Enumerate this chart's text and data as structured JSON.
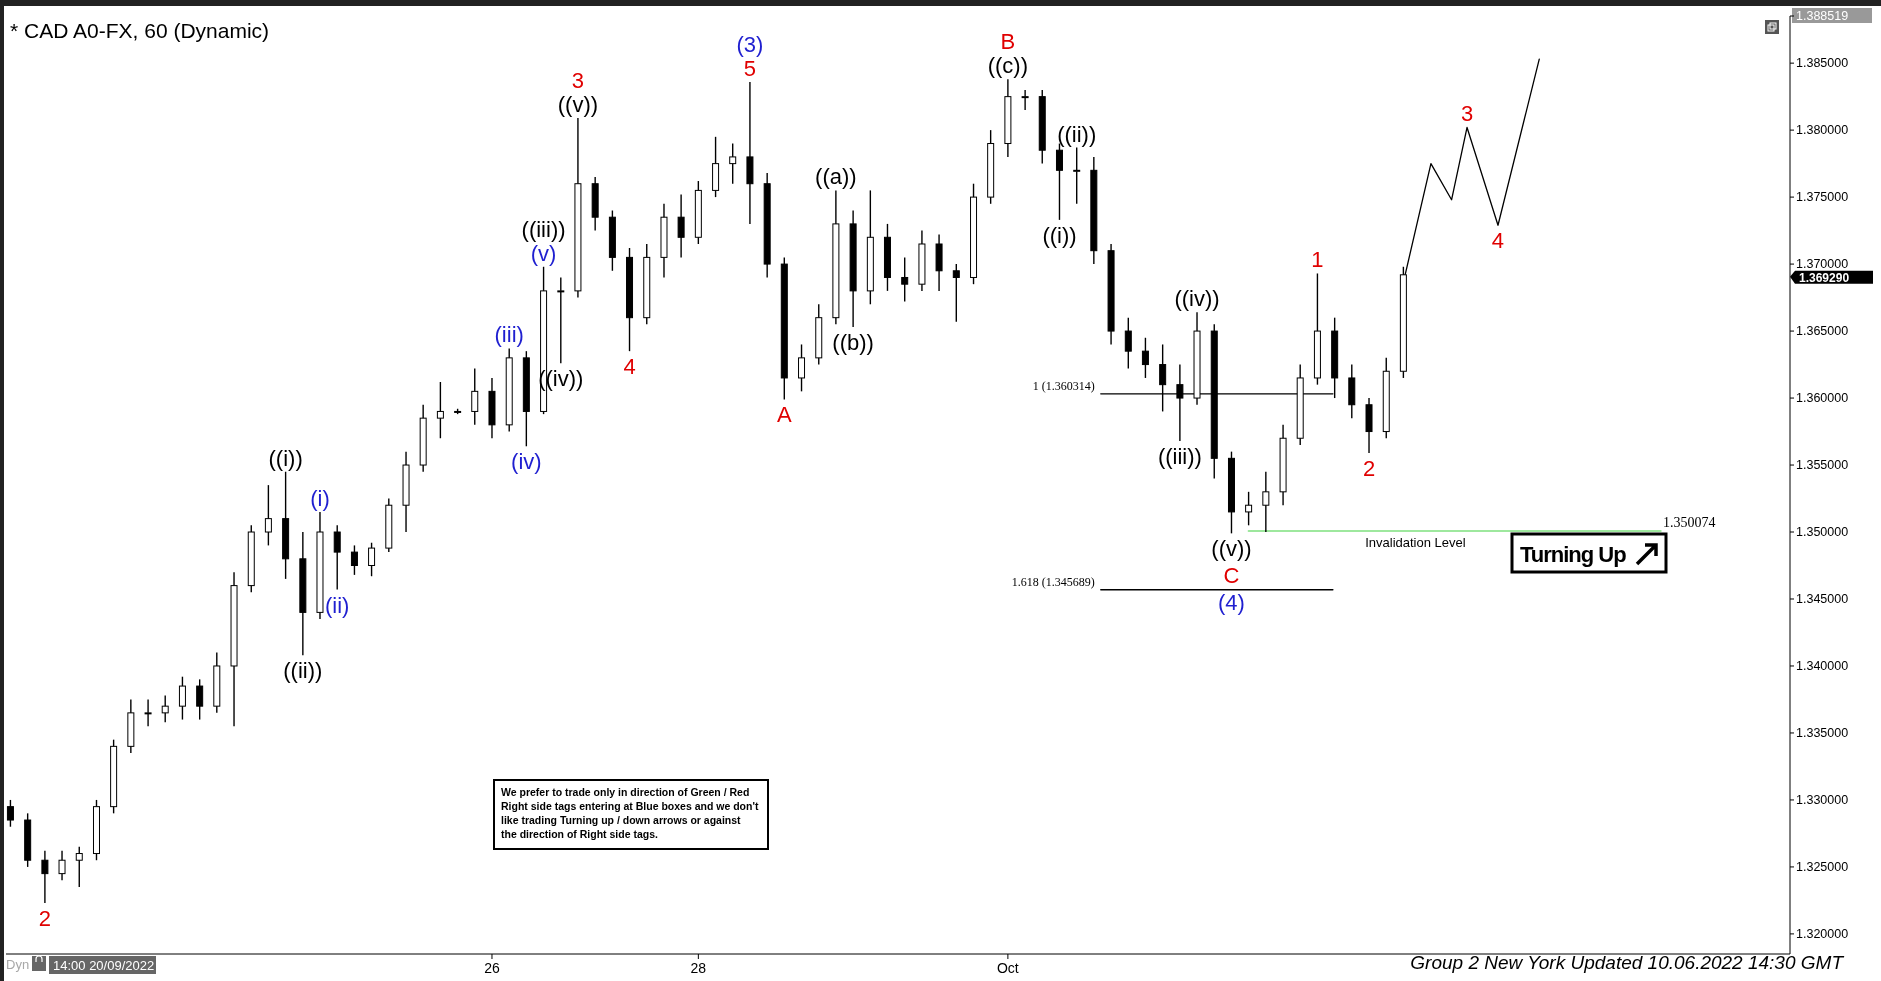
{
  "chart_data": {
    "type": "candlestick",
    "title": "* CAD A0-FX, 60 (Dynamic)",
    "color": "#000000",
    "xlim": [
      21.29,
      38.58
    ],
    "xticks": [
      26,
      28,
      {
        "value": 31,
        "label": "Oct"
      }
    ],
    "ylim": [
      1.3185,
      1.388519
    ],
    "yticks": [
      {
        "value": 1.32,
        "label": "1.320000"
      },
      {
        "value": 1.325,
        "label": "1.325000"
      },
      {
        "value": 1.33,
        "label": "1.330000"
      },
      {
        "value": 1.335,
        "label": "1.335000"
      },
      {
        "value": 1.34,
        "label": "1.340000"
      },
      {
        "value": 1.345,
        "label": "1.345000"
      },
      {
        "value": 1.35,
        "label": "1.350000"
      },
      {
        "value": 1.355,
        "label": "1.355000"
      },
      {
        "value": 1.36,
        "label": "1.360000"
      },
      {
        "value": 1.365,
        "label": "1.365000"
      },
      {
        "value": 1.37,
        "label": "1.370000"
      },
      {
        "value": 1.375,
        "label": "1.375000"
      },
      {
        "value": 1.38,
        "label": "1.380000"
      },
      {
        "value": 1.385,
        "label": "1.385000"
      },
      {
        "value": 1.388519,
        "label": "1.388519"
      }
    ],
    "x": [
      21.333,
      21.5,
      21.667,
      21.833,
      22,
      22.167,
      22.333,
      22.5,
      22.667,
      22.833,
      23,
      23.167,
      23.333,
      23.5,
      23.667,
      23.833,
      24,
      24.167,
      24.333,
      24.5,
      24.667,
      24.833,
      25,
      25.167,
      25.333,
      25.5,
      25.667,
      25.833,
      26,
      26.167,
      26.333,
      26.5,
      26.667,
      26.833,
      27,
      27.167,
      27.333,
      27.5,
      27.667,
      27.833,
      28,
      28.167,
      28.333,
      28.5,
      28.667,
      28.833,
      29,
      29.167,
      29.333,
      29.5,
      29.667,
      29.833,
      30,
      30.167,
      30.333,
      30.5,
      30.667,
      30.833,
      31,
      31.167,
      31.333,
      31.5,
      31.667,
      31.833,
      32,
      32.167,
      32.333,
      32.5,
      32.667,
      32.833,
      33,
      33.167,
      33.333,
      33.5,
      33.667,
      33.833,
      34,
      34.167,
      34.333,
      34.5,
      34.667,
      34.833
    ],
    "ohlc": [
      [
        1.3295,
        1.33,
        1.328,
        1.3285
      ],
      [
        1.3285,
        1.329,
        1.325,
        1.3255
      ],
      [
        1.3255,
        1.3262,
        1.3223,
        1.3245
      ],
      [
        1.3245,
        1.3262,
        1.324,
        1.3255
      ],
      [
        1.3255,
        1.3265,
        1.3235,
        1.326
      ],
      [
        1.326,
        1.33,
        1.3255,
        1.3295
      ],
      [
        1.3295,
        1.3345,
        1.329,
        1.334
      ],
      [
        1.334,
        1.3375,
        1.3335,
        1.3365
      ],
      [
        1.3365,
        1.3375,
        1.3355,
        1.3365
      ],
      [
        1.3365,
        1.3378,
        1.3358,
        1.337
      ],
      [
        1.337,
        1.3392,
        1.336,
        1.3385
      ],
      [
        1.3385,
        1.339,
        1.336,
        1.337
      ],
      [
        1.337,
        1.341,
        1.3365,
        1.34
      ],
      [
        1.34,
        1.347,
        1.3355,
        1.346
      ],
      [
        1.346,
        1.3505,
        1.3455,
        1.35
      ],
      [
        1.35,
        1.3535,
        1.349,
        1.351
      ],
      [
        1.351,
        1.3545,
        1.3465,
        1.348
      ],
      [
        1.348,
        1.35,
        1.3408,
        1.344
      ],
      [
        1.344,
        1.3515,
        1.3435,
        1.35
      ],
      [
        1.35,
        1.3505,
        1.3457,
        1.3485
      ],
      [
        1.3485,
        1.349,
        1.3468,
        1.3475
      ],
      [
        1.3475,
        1.3492,
        1.3467,
        1.3488
      ],
      [
        1.3488,
        1.3525,
        1.3485,
        1.352
      ],
      [
        1.352,
        1.356,
        1.35,
        1.355
      ],
      [
        1.355,
        1.3595,
        1.3545,
        1.3585
      ],
      [
        1.3585,
        1.3612,
        1.357,
        1.359
      ],
      [
        1.359,
        1.3592,
        1.3588,
        1.359
      ],
      [
        1.359,
        1.3622,
        1.358,
        1.3605
      ],
      [
        1.3605,
        1.3615,
        1.357,
        1.358
      ],
      [
        1.358,
        1.3637,
        1.3575,
        1.363
      ],
      [
        1.363,
        1.3635,
        1.3564,
        1.359
      ],
      [
        1.359,
        1.3698,
        1.3588,
        1.368
      ],
      [
        1.368,
        1.369,
        1.3626,
        1.368
      ],
      [
        1.368,
        1.3809,
        1.3675,
        1.376
      ],
      [
        1.376,
        1.3765,
        1.3725,
        1.3735
      ],
      [
        1.3735,
        1.374,
        1.3695,
        1.3705
      ],
      [
        1.3705,
        1.3712,
        1.3635,
        1.366
      ],
      [
        1.366,
        1.3715,
        1.3655,
        1.3705
      ],
      [
        1.3705,
        1.3745,
        1.369,
        1.3735
      ],
      [
        1.3735,
        1.3752,
        1.3705,
        1.372
      ],
      [
        1.372,
        1.3762,
        1.3715,
        1.3755
      ],
      [
        1.3755,
        1.3795,
        1.375,
        1.3775
      ],
      [
        1.3775,
        1.379,
        1.376,
        1.378
      ],
      [
        1.378,
        1.3836,
        1.373,
        1.376
      ],
      [
        1.376,
        1.3768,
        1.369,
        1.37
      ],
      [
        1.37,
        1.3705,
        1.3599,
        1.3615
      ],
      [
        1.3615,
        1.364,
        1.3605,
        1.363
      ],
      [
        1.363,
        1.367,
        1.3625,
        1.366
      ],
      [
        1.366,
        1.3755,
        1.3655,
        1.373
      ],
      [
        1.373,
        1.374,
        1.3653,
        1.368
      ],
      [
        1.368,
        1.3755,
        1.367,
        1.372
      ],
      [
        1.372,
        1.373,
        1.368,
        1.369
      ],
      [
        1.369,
        1.3705,
        1.3672,
        1.3685
      ],
      [
        1.3685,
        1.3725,
        1.368,
        1.3715
      ],
      [
        1.3715,
        1.3722,
        1.368,
        1.3695
      ],
      [
        1.3695,
        1.37,
        1.3657,
        1.369
      ],
      [
        1.369,
        1.376,
        1.3685,
        1.375
      ],
      [
        1.375,
        1.38,
        1.3745,
        1.379
      ],
      [
        1.379,
        1.3838,
        1.378,
        1.3825
      ],
      [
        1.3825,
        1.383,
        1.3815,
        1.3825
      ],
      [
        1.3825,
        1.383,
        1.3775,
        1.3785
      ],
      [
        1.3785,
        1.379,
        1.3733,
        1.377
      ],
      [
        1.377,
        1.3787,
        1.3745,
        1.377
      ],
      [
        1.377,
        1.378,
        1.37,
        1.371
      ],
      [
        1.371,
        1.3715,
        1.364,
        1.365
      ],
      [
        1.365,
        1.366,
        1.3622,
        1.3635
      ],
      [
        1.3635,
        1.3645,
        1.3615,
        1.3625
      ],
      [
        1.3625,
        1.364,
        1.359,
        1.361
      ],
      [
        1.361,
        1.3625,
        1.3568,
        1.36
      ],
      [
        1.36,
        1.3664,
        1.3595,
        1.365
      ],
      [
        1.365,
        1.3655,
        1.354,
        1.3555
      ],
      [
        1.3555,
        1.356,
        1.3499,
        1.3515
      ],
      [
        1.3515,
        1.353,
        1.3505,
        1.352
      ],
      [
        1.352,
        1.3545,
        1.35,
        1.353
      ],
      [
        1.353,
        1.358,
        1.352,
        1.357
      ],
      [
        1.357,
        1.3625,
        1.3565,
        1.3615
      ],
      [
        1.3615,
        1.3693,
        1.361,
        1.365
      ],
      [
        1.365,
        1.366,
        1.36,
        1.3615
      ],
      [
        1.3615,
        1.3625,
        1.3585,
        1.3595
      ],
      [
        1.3595,
        1.36,
        1.3559,
        1.3575
      ],
      [
        1.3575,
        1.363,
        1.357,
        1.362
      ],
      [
        1.362,
        1.3698,
        1.3615,
        1.3692
      ]
    ],
    "series": [
      {
        "type": "line",
        "color": "#000000",
        "x": [
          34.85,
          35.1,
          35.3,
          35.45,
          35.75,
          36.15
        ],
        "values": [
          1.3692,
          1.3775,
          1.3748,
          1.3802,
          1.3729,
          1.3853
        ]
      },
      {
        "type": "line",
        "color": "#000000",
        "x": [
          31.9,
          34.15
        ],
        "values": [
          1.360314,
          1.360314
        ]
      },
      {
        "type": "line",
        "color": "#000000",
        "x": [
          31.9,
          34.15
        ],
        "values": [
          1.345689,
          1.345689
        ]
      },
      {
        "type": "line",
        "color": "#7ee07e",
        "x": [
          33.33,
          37.33
        ],
        "values": [
          1.350074,
          1.350074
        ]
      }
    ],
    "annotations": [
      {
        "text": "2",
        "x": 21.667,
        "y": 1.3223
      },
      {
        "text": "((i))",
        "x": 24,
        "y": 1.3545
      },
      {
        "text": "((ii))",
        "x": 24.167,
        "y": 1.3408
      },
      {
        "text": "(i)",
        "x": 24.333,
        "y": 1.3515
      },
      {
        "text": "(ii)",
        "x": 24.5,
        "y": 1.3457
      },
      {
        "text": "(iii)",
        "x": 26.167,
        "y": 1.3637
      },
      {
        "text": "(iv)",
        "x": 26.333,
        "y": 1.3564
      },
      {
        "text": "(v)",
        "x": 26.5,
        "y": 1.3698
      },
      {
        "text": "((iii))",
        "x": 26.5,
        "y": 1.3698
      },
      {
        "text": "((iv))",
        "x": 26.667,
        "y": 1.3626
      },
      {
        "text": "((v))",
        "x": 26.833,
        "y": 1.3809
      },
      {
        "text": "3",
        "x": 26.833,
        "y": 1.3809
      },
      {
        "text": "4",
        "x": 27.333,
        "y": 1.3635
      },
      {
        "text": "5",
        "x": 28.5,
        "y": 1.3836
      },
      {
        "text": "(3)",
        "x": 28.5,
        "y": 1.3836
      },
      {
        "text": "A",
        "x": 28.833,
        "y": 1.3599
      },
      {
        "text": "((a))",
        "x": 29.333,
        "y": 1.3755
      },
      {
        "text": "((b))",
        "x": 29.5,
        "y": 1.3653
      },
      {
        "text": "((c))",
        "x": 31,
        "y": 1.3838
      },
      {
        "text": "B",
        "x": 31,
        "y": 1.3838
      },
      {
        "text": "((i))",
        "x": 31.5,
        "y": 1.3733
      },
      {
        "text": "((ii))",
        "x": 31.667,
        "y": 1.3787
      },
      {
        "text": "((iii))",
        "x": 32.667,
        "y": 1.3568
      },
      {
        "text": "((iv))",
        "x": 32.833,
        "y": 1.3664
      },
      {
        "text": "((v))",
        "x": 33.167,
        "y": 1.3499
      },
      {
        "text": "C",
        "x": 33.167,
        "y": 1.3499
      },
      {
        "text": "(4)",
        "x": 33.167,
        "y": 1.3499
      },
      {
        "text": "1",
        "x": 34,
        "y": 1.3693
      },
      {
        "text": "2",
        "x": 34.5,
        "y": 1.3559
      },
      {
        "text": "3",
        "x": 35.45,
        "y": 1.3802
      },
      {
        "text": "4",
        "x": 35.75,
        "y": 1.3729
      },
      {
        "text": "1 (1.360314)",
        "x": 31.9,
        "y": 1.360314
      },
      {
        "text": "1.618 (1.345689)",
        "x": 31.9,
        "y": 1.345689
      },
      {
        "text": "Invalidation Level",
        "x": 34.95,
        "y": 1.350074
      },
      {
        "text": "1.350074",
        "x": 37.33,
        "y": 1.350074
      },
      "1.369290",
      "Turning Up",
      "We prefer to trade only in direction of Green / Red Right side tags entering at Blue boxes and we don't like trading Turning up / down arrows or against the direction of Right side tags.",
      "Group 2 New York Updated 10.06.2022 14:30 GMT",
      "Dyn",
      "14:00 20/09/2022"
    ]
  }
}
